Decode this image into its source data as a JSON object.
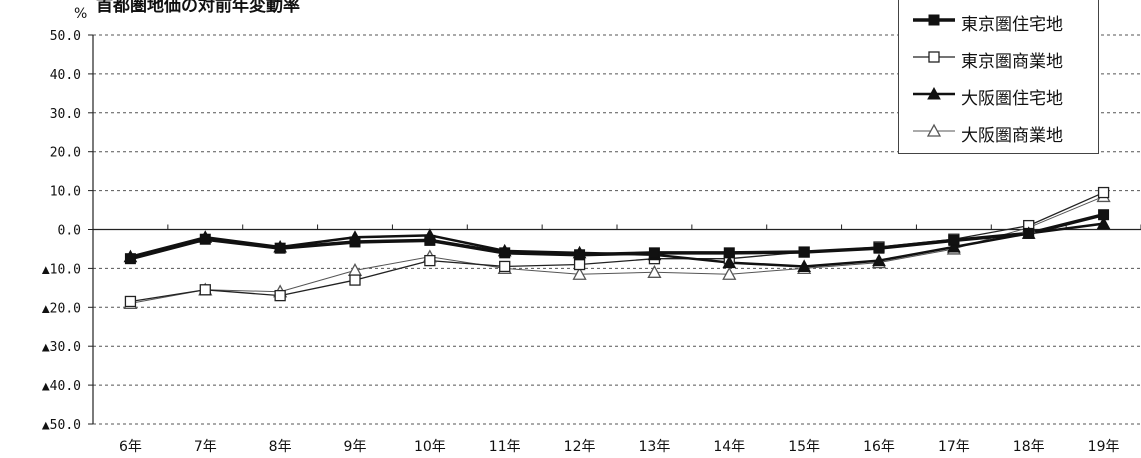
{
  "chart_data": {
    "type": "line",
    "title": "首都圏地価の対前年変動率",
    "ylabel": "%",
    "ylim": [
      -50,
      50
    ],
    "yticks": [
      {
        "value": 50,
        "label": "50.0"
      },
      {
        "value": 40,
        "label": "40.0"
      },
      {
        "value": 30,
        "label": "30.0"
      },
      {
        "value": 20,
        "label": "20.0"
      },
      {
        "value": 10,
        "label": "10.0"
      },
      {
        "value": 0,
        "label": "0.0"
      },
      {
        "value": -10,
        "label": "▲10.0"
      },
      {
        "value": -20,
        "label": "▲20.0"
      },
      {
        "value": -30,
        "label": "▲30.0"
      },
      {
        "value": -40,
        "label": "▲40.0"
      },
      {
        "value": -50,
        "label": "▲50.0"
      }
    ],
    "categories": [
      "6年",
      "7年",
      "8年",
      "9年",
      "10年",
      "11年",
      "12年",
      "13年",
      "14年",
      "15年",
      "16年",
      "17年",
      "18年",
      "19年"
    ],
    "grid": "dotted horizontal",
    "legend_position": "top-right",
    "series": [
      {
        "name": "東京圏住宅地",
        "marker": "filled-square",
        "color": "#111111",
        "values": [
          -7.5,
          -2.5,
          -4.8,
          -3.2,
          -2.8,
          -6.0,
          -6.5,
          -6.0,
          -6.0,
          -5.8,
          -4.8,
          -2.8,
          -1.0,
          3.8
        ]
      },
      {
        "name": "東京圏商業地",
        "marker": "open-square",
        "color": "#222222",
        "values": [
          -18.5,
          -15.5,
          -17.0,
          -13.0,
          -8.0,
          -9.5,
          -9.0,
          -7.5,
          -7.5,
          -5.8,
          -4.5,
          -2.5,
          1.0,
          9.5
        ]
      },
      {
        "name": "大阪圏住宅地",
        "marker": "filled-triangle",
        "color": "#111111",
        "values": [
          -7.0,
          -2.0,
          -4.5,
          -2.0,
          -1.5,
          -5.5,
          -6.0,
          -6.5,
          -8.5,
          -9.5,
          -8.0,
          -4.5,
          -1.0,
          1.5
        ]
      },
      {
        "name": "大阪圏商業地",
        "marker": "open-triangle",
        "color": "#555555",
        "values": [
          -19.0,
          -15.5,
          -16.0,
          -10.5,
          -7.0,
          -10.0,
          -11.5,
          -11.0,
          -11.5,
          -10.0,
          -8.5,
          -5.0,
          0.5,
          8.5
        ]
      }
    ]
  }
}
